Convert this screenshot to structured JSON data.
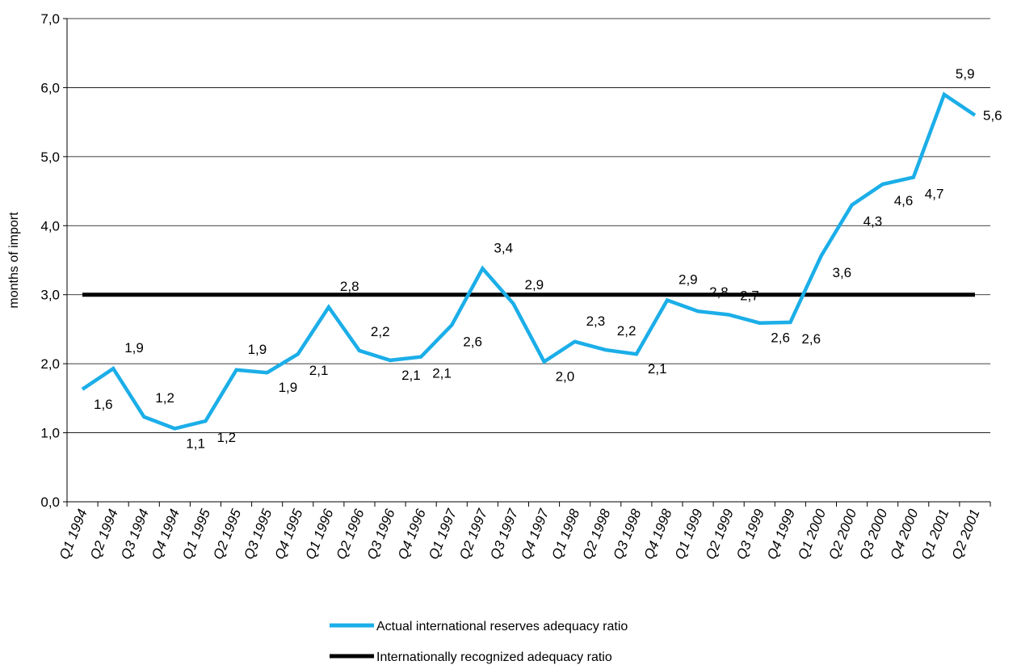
{
  "chart_data": {
    "type": "line",
    "ylabel": "months of import",
    "xlabel": "",
    "ylim": [
      0,
      7
    ],
    "y_ticks": [
      "0,0",
      "1,0",
      "2,0",
      "3,0",
      "4,0",
      "5,0",
      "6,0",
      "7,0"
    ],
    "categories": [
      "Q1 1994",
      "Q2 1994",
      "Q3 1994",
      "Q4 1994",
      "Q1 1995",
      "Q2 1995",
      "Q3 1995",
      "Q4 1995",
      "Q1 1996",
      "Q2 1996",
      "Q3 1996",
      "Q4 1996",
      "Q1 1997",
      "Q2 1997",
      "Q3 1997",
      "Q4 1997",
      "Q1 1998",
      "Q2 1998",
      "Q3 1998",
      "Q4 1998",
      "Q1 1999",
      "Q2 1999",
      "Q3 1999",
      "Q4 1999",
      "Q1 2000",
      "Q2 2000",
      "Q3 2000",
      "Q4 2000",
      "Q1 2001",
      "Q2 2001"
    ],
    "grid": true,
    "legend_position": "bottom-center",
    "series": [
      {
        "name": "Actual international reserves adequacy ratio",
        "color": "#1BAEE8",
        "values": [
          1.63,
          1.93,
          1.23,
          1.06,
          1.17,
          1.91,
          1.87,
          2.14,
          2.82,
          2.19,
          2.05,
          2.1,
          2.56,
          3.38,
          2.87,
          2.03,
          2.32,
          2.2,
          2.14,
          2.92,
          2.76,
          2.71,
          2.59,
          2.6,
          3.56,
          4.3,
          4.6,
          4.7,
          5.9,
          5.6
        ],
        "data_labels": [
          "1,6",
          "1,9",
          "1,2",
          "1,1",
          "1,2",
          "1,9",
          "1,9",
          "2,1",
          "2,8",
          "2,2",
          "2,1",
          "2,1",
          "2,6",
          "3,4",
          "2,9",
          "2,0",
          "2,3",
          "2,2",
          "2,1",
          "2,9",
          "2,8",
          "2,7",
          "2,6",
          "2,6",
          "3,6",
          "4,3",
          "4,6",
          "4,7",
          "5,9",
          "5,6"
        ]
      },
      {
        "name": "Internationally recognized adequacy ratio",
        "color": "#000000",
        "values": [
          3,
          3,
          3,
          3,
          3,
          3,
          3,
          3,
          3,
          3,
          3,
          3,
          3,
          3,
          3,
          3,
          3,
          3,
          3,
          3,
          3,
          3,
          3,
          3,
          3,
          3,
          3,
          3,
          3,
          3
        ]
      }
    ]
  }
}
